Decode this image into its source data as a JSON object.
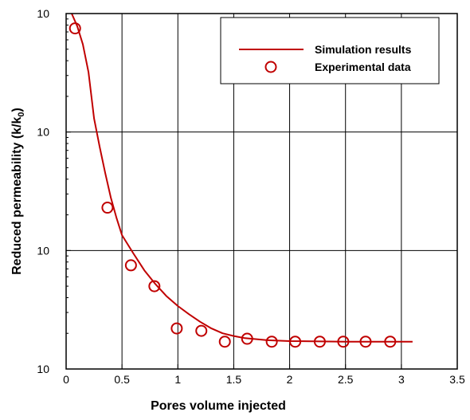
{
  "chart_data": {
    "type": "line+scatter",
    "xlabel": "Pores volume injected",
    "ylabel_main": "Reduced permeability (k/k",
    "ylabel_sub": "0",
    "ylabel_close": ")",
    "xlim": [
      0,
      3.5
    ],
    "ylim": [
      0.001,
      1
    ],
    "yscale": "log",
    "grid": true,
    "legend_position": "top-right",
    "x_ticks": [
      {
        "value": 0,
        "label": "0"
      },
      {
        "value": 0.5,
        "label": "0.5"
      },
      {
        "value": 1,
        "label": "1"
      },
      {
        "value": 1.5,
        "label": "1.5"
      },
      {
        "value": 2,
        "label": "2"
      },
      {
        "value": 2.5,
        "label": "2.5"
      },
      {
        "value": 3,
        "label": "3"
      },
      {
        "value": 3.5,
        "label": "3.5"
      }
    ],
    "y_ticks": [
      {
        "value": 1,
        "base": "10",
        "exp": "0"
      },
      {
        "value": 0.1,
        "base": "10",
        "exp": "-1"
      },
      {
        "value": 0.01,
        "base": "10",
        "exp": "-2"
      },
      {
        "value": 0.001,
        "base": "10",
        "exp": "-3"
      }
    ],
    "series": [
      {
        "name": "Simulation results",
        "kind": "line",
        "color": "#c00000",
        "points": [
          [
            0.05,
            1.0
          ],
          [
            0.1,
            0.78
          ],
          [
            0.15,
            0.55
          ],
          [
            0.2,
            0.32
          ],
          [
            0.25,
            0.13
          ],
          [
            0.3,
            0.075
          ],
          [
            0.35,
            0.045
          ],
          [
            0.4,
            0.028
          ],
          [
            0.45,
            0.019
          ],
          [
            0.5,
            0.0135
          ],
          [
            0.6,
            0.0095
          ],
          [
            0.7,
            0.0068
          ],
          [
            0.8,
            0.0052
          ],
          [
            0.9,
            0.0041
          ],
          [
            1.0,
            0.0034
          ],
          [
            1.1,
            0.0029
          ],
          [
            1.2,
            0.0025
          ],
          [
            1.3,
            0.0022
          ],
          [
            1.4,
            0.002
          ],
          [
            1.5,
            0.0019
          ],
          [
            1.6,
            0.00182
          ],
          [
            1.8,
            0.00175
          ],
          [
            2.0,
            0.00172
          ],
          [
            2.5,
            0.0017
          ],
          [
            3.1,
            0.0017
          ]
        ]
      },
      {
        "name": "Experimental data",
        "kind": "scatter",
        "color": "#c00000",
        "points": [
          [
            0.08,
            0.75
          ],
          [
            0.37,
            0.023
          ],
          [
            0.58,
            0.0075
          ],
          [
            0.79,
            0.005
          ],
          [
            0.99,
            0.0022
          ],
          [
            1.21,
            0.0021
          ],
          [
            1.42,
            0.0017
          ],
          [
            1.62,
            0.0018
          ],
          [
            1.84,
            0.0017
          ],
          [
            2.05,
            0.0017
          ],
          [
            2.27,
            0.0017
          ],
          [
            2.48,
            0.0017
          ],
          [
            2.68,
            0.0017
          ],
          [
            2.9,
            0.0017
          ]
        ]
      }
    ]
  }
}
